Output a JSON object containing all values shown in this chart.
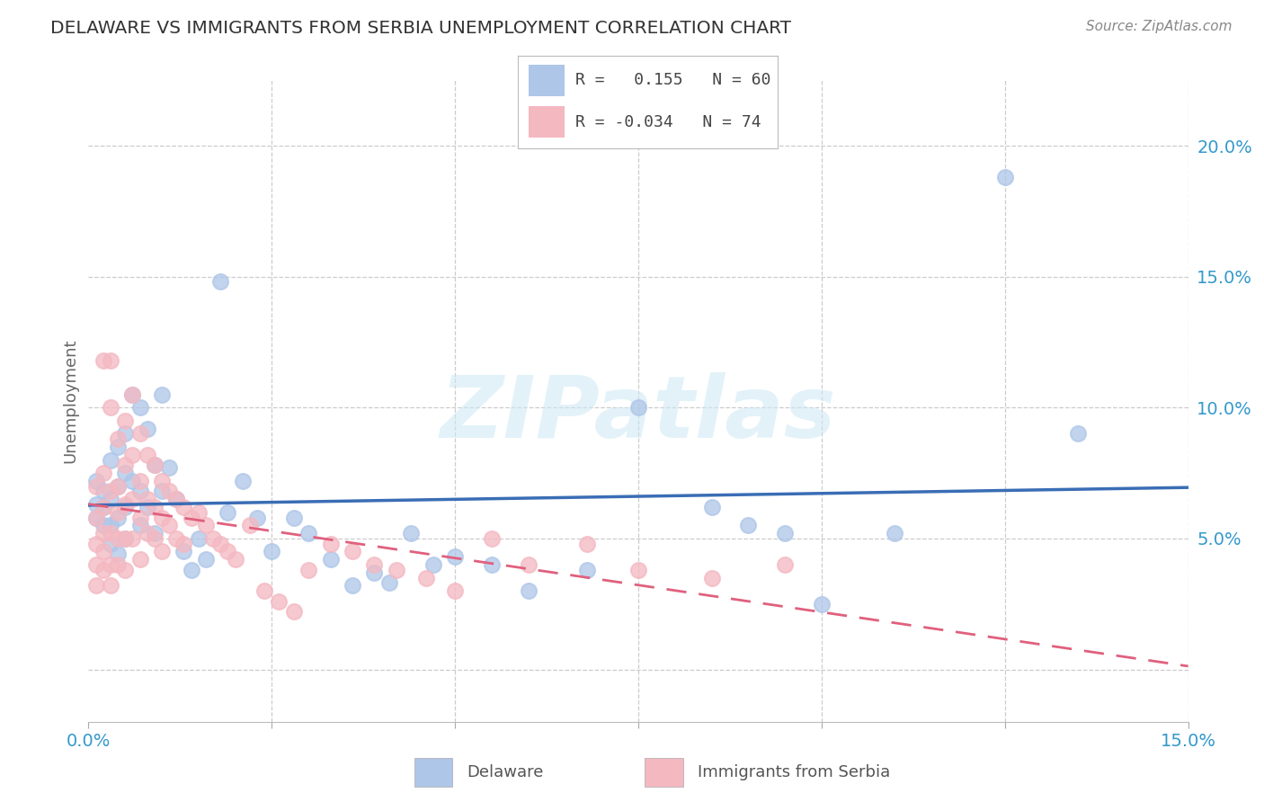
{
  "title": "DELAWARE VS IMMIGRANTS FROM SERBIA UNEMPLOYMENT CORRELATION CHART",
  "source": "Source: ZipAtlas.com",
  "ylabel_label": "Unemployment",
  "watermark": "ZIPatlas",
  "xlim": [
    0.0,
    0.15
  ],
  "ylim": [
    -0.02,
    0.225
  ],
  "delaware_color": "#aec6e8",
  "serbia_color": "#f4b8c1",
  "delaware_line_color": "#3a6db5",
  "serbia_line_color": "#e0607e",
  "legend_R_delaware": "R =   0.155",
  "legend_N_delaware": "N = 60",
  "legend_R_serbia": "R = -0.034",
  "legend_N_serbia": "N = 74",
  "delaware_x": [
    0.001,
    0.001,
    0.001,
    0.002,
    0.002,
    0.002,
    0.003,
    0.003,
    0.003,
    0.003,
    0.004,
    0.004,
    0.004,
    0.004,
    0.005,
    0.005,
    0.005,
    0.005,
    0.006,
    0.006,
    0.007,
    0.007,
    0.007,
    0.008,
    0.008,
    0.009,
    0.009,
    0.01,
    0.01,
    0.011,
    0.012,
    0.013,
    0.014,
    0.015,
    0.016,
    0.018,
    0.019,
    0.021,
    0.023,
    0.025,
    0.028,
    0.03,
    0.033,
    0.036,
    0.039,
    0.041,
    0.044,
    0.047,
    0.05,
    0.055,
    0.06,
    0.068,
    0.075,
    0.085,
    0.09,
    0.095,
    0.1,
    0.11,
    0.125,
    0.135
  ],
  "delaware_y": [
    0.063,
    0.072,
    0.058,
    0.068,
    0.055,
    0.062,
    0.08,
    0.065,
    0.055,
    0.048,
    0.085,
    0.07,
    0.058,
    0.044,
    0.09,
    0.062,
    0.075,
    0.05,
    0.105,
    0.072,
    0.1,
    0.068,
    0.055,
    0.092,
    0.062,
    0.078,
    0.052,
    0.105,
    0.068,
    0.077,
    0.065,
    0.045,
    0.038,
    0.05,
    0.042,
    0.148,
    0.06,
    0.072,
    0.058,
    0.045,
    0.058,
    0.052,
    0.042,
    0.032,
    0.037,
    0.033,
    0.052,
    0.04,
    0.043,
    0.04,
    0.03,
    0.038,
    0.1,
    0.062,
    0.055,
    0.052,
    0.025,
    0.052,
    0.188,
    0.09
  ],
  "serbia_x": [
    0.001,
    0.001,
    0.001,
    0.001,
    0.001,
    0.002,
    0.002,
    0.002,
    0.002,
    0.002,
    0.002,
    0.003,
    0.003,
    0.003,
    0.003,
    0.003,
    0.003,
    0.004,
    0.004,
    0.004,
    0.004,
    0.004,
    0.005,
    0.005,
    0.005,
    0.005,
    0.005,
    0.006,
    0.006,
    0.006,
    0.006,
    0.007,
    0.007,
    0.007,
    0.007,
    0.008,
    0.008,
    0.008,
    0.009,
    0.009,
    0.009,
    0.01,
    0.01,
    0.01,
    0.011,
    0.011,
    0.012,
    0.012,
    0.013,
    0.013,
    0.014,
    0.015,
    0.016,
    0.017,
    0.018,
    0.019,
    0.02,
    0.022,
    0.024,
    0.026,
    0.028,
    0.03,
    0.033,
    0.036,
    0.039,
    0.042,
    0.046,
    0.05,
    0.055,
    0.06,
    0.068,
    0.075,
    0.085,
    0.095
  ],
  "serbia_y": [
    0.07,
    0.058,
    0.048,
    0.04,
    0.032,
    0.075,
    0.118,
    0.062,
    0.052,
    0.045,
    0.038,
    0.118,
    0.1,
    0.068,
    0.052,
    0.04,
    0.032,
    0.088,
    0.07,
    0.06,
    0.05,
    0.04,
    0.095,
    0.078,
    0.063,
    0.05,
    0.038,
    0.105,
    0.082,
    0.065,
    0.05,
    0.09,
    0.072,
    0.058,
    0.042,
    0.082,
    0.065,
    0.052,
    0.078,
    0.062,
    0.05,
    0.072,
    0.058,
    0.045,
    0.068,
    0.055,
    0.065,
    0.05,
    0.062,
    0.048,
    0.058,
    0.06,
    0.055,
    0.05,
    0.048,
    0.045,
    0.042,
    0.055,
    0.03,
    0.026,
    0.022,
    0.038,
    0.048,
    0.045,
    0.04,
    0.038,
    0.035,
    0.03,
    0.05,
    0.04,
    0.048,
    0.038,
    0.035,
    0.04
  ],
  "background_color": "#ffffff",
  "grid_color": "#cccccc"
}
